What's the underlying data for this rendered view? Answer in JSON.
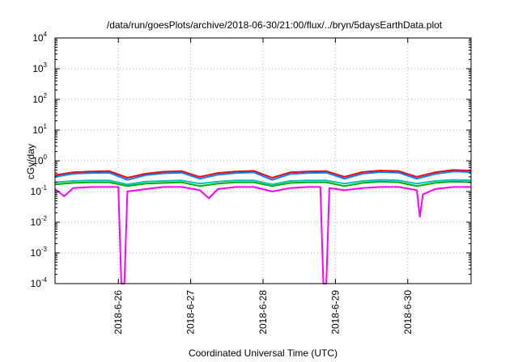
{
  "chart_data": {
    "type": "line",
    "title": "/data/run/goesPlots/archive/2018-06-30/21:00/flux/../bryn/5daysEarthData.plot",
    "xlabel": "Coordinated Universal Time (UTC)",
    "ylabel": "cGy/day",
    "yscale": "log",
    "ylim": [
      0.0001,
      10000
    ],
    "xlim": [
      "2018-06-25T03:00",
      "2018-06-30T21:00"
    ],
    "grid": true,
    "legend": "none",
    "x_ticks": [
      "2018-6-26",
      "2018-6-27",
      "2018-6-28",
      "2018-6-29",
      "2018-6-30"
    ],
    "y_ticks": [
      {
        "value": 0.0001,
        "base": "10",
        "exp": "-4"
      },
      {
        "value": 0.001,
        "base": "10",
        "exp": "-3"
      },
      {
        "value": 0.01,
        "base": "10",
        "exp": "-2"
      },
      {
        "value": 0.1,
        "base": "10",
        "exp": "-1"
      },
      {
        "value": 1,
        "base": "10",
        "exp": "0"
      },
      {
        "value": 10,
        "base": "10",
        "exp": "1"
      },
      {
        "value": 100,
        "base": "10",
        "exp": "2"
      },
      {
        "value": 1000,
        "base": "10",
        "exp": "3"
      },
      {
        "value": 10000,
        "base": "10",
        "exp": "4"
      }
    ],
    "series": [
      {
        "color": "#ff0000",
        "values": [
          [
            "2018-06-25T03:00",
            0.34
          ],
          [
            "2018-06-25T09:00",
            0.42
          ],
          [
            "2018-06-25T15:00",
            0.45
          ],
          [
            "2018-06-25T21:00",
            0.46
          ],
          [
            "2018-06-26T03:00",
            0.28
          ],
          [
            "2018-06-26T09:00",
            0.38
          ],
          [
            "2018-06-26T15:00",
            0.44
          ],
          [
            "2018-06-26T21:00",
            0.46
          ],
          [
            "2018-06-27T03:00",
            0.3
          ],
          [
            "2018-06-27T09:00",
            0.4
          ],
          [
            "2018-06-27T15:00",
            0.45
          ],
          [
            "2018-06-27T21:00",
            0.47
          ],
          [
            "2018-06-28T03:00",
            0.28
          ],
          [
            "2018-06-28T09:00",
            0.42
          ],
          [
            "2018-06-28T15:00",
            0.45
          ],
          [
            "2018-06-28T21:00",
            0.46
          ],
          [
            "2018-06-29T03:00",
            0.3
          ],
          [
            "2018-06-29T09:00",
            0.43
          ],
          [
            "2018-06-29T15:00",
            0.48
          ],
          [
            "2018-06-29T21:00",
            0.46
          ],
          [
            "2018-06-30T03:00",
            0.3
          ],
          [
            "2018-06-30T09:00",
            0.42
          ],
          [
            "2018-06-30T15:00",
            0.5
          ],
          [
            "2018-06-30T21:00",
            0.48
          ]
        ]
      },
      {
        "color": "#0080ff",
        "values": [
          [
            "2018-06-25T03:00",
            0.3
          ],
          [
            "2018-06-25T09:00",
            0.38
          ],
          [
            "2018-06-25T15:00",
            0.4
          ],
          [
            "2018-06-25T21:00",
            0.41
          ],
          [
            "2018-06-26T03:00",
            0.24
          ],
          [
            "2018-06-26T09:00",
            0.34
          ],
          [
            "2018-06-26T15:00",
            0.39
          ],
          [
            "2018-06-26T21:00",
            0.41
          ],
          [
            "2018-06-27T03:00",
            0.26
          ],
          [
            "2018-06-27T09:00",
            0.35
          ],
          [
            "2018-06-27T15:00",
            0.4
          ],
          [
            "2018-06-27T21:00",
            0.42
          ],
          [
            "2018-06-28T03:00",
            0.24
          ],
          [
            "2018-06-28T09:00",
            0.37
          ],
          [
            "2018-06-28T15:00",
            0.4
          ],
          [
            "2018-06-28T21:00",
            0.41
          ],
          [
            "2018-06-29T03:00",
            0.26
          ],
          [
            "2018-06-29T09:00",
            0.38
          ],
          [
            "2018-06-29T15:00",
            0.43
          ],
          [
            "2018-06-29T21:00",
            0.41
          ],
          [
            "2018-06-30T03:00",
            0.26
          ],
          [
            "2018-06-30T09:00",
            0.37
          ],
          [
            "2018-06-30T15:00",
            0.45
          ],
          [
            "2018-06-30T21:00",
            0.43
          ]
        ]
      },
      {
        "color": "#00c0c0",
        "values": [
          [
            "2018-06-25T03:00",
            0.2
          ],
          [
            "2018-06-25T09:00",
            0.22
          ],
          [
            "2018-06-25T15:00",
            0.23
          ],
          [
            "2018-06-25T21:00",
            0.23
          ],
          [
            "2018-06-26T03:00",
            0.17
          ],
          [
            "2018-06-26T09:00",
            0.21
          ],
          [
            "2018-06-26T15:00",
            0.22
          ],
          [
            "2018-06-26T21:00",
            0.23
          ],
          [
            "2018-06-27T03:00",
            0.18
          ],
          [
            "2018-06-27T09:00",
            0.21
          ],
          [
            "2018-06-27T15:00",
            0.23
          ],
          [
            "2018-06-27T21:00",
            0.23
          ],
          [
            "2018-06-28T03:00",
            0.17
          ],
          [
            "2018-06-28T09:00",
            0.22
          ],
          [
            "2018-06-28T15:00",
            0.23
          ],
          [
            "2018-06-28T21:00",
            0.23
          ],
          [
            "2018-06-29T03:00",
            0.18
          ],
          [
            "2018-06-29T09:00",
            0.22
          ],
          [
            "2018-06-29T15:00",
            0.24
          ],
          [
            "2018-06-29T21:00",
            0.23
          ],
          [
            "2018-06-30T03:00",
            0.18
          ],
          [
            "2018-06-30T09:00",
            0.22
          ],
          [
            "2018-06-30T15:00",
            0.24
          ],
          [
            "2018-06-30T21:00",
            0.23
          ]
        ]
      },
      {
        "color": "#00b000",
        "values": [
          [
            "2018-06-25T03:00",
            0.17
          ],
          [
            "2018-06-25T09:00",
            0.19
          ],
          [
            "2018-06-25T15:00",
            0.2
          ],
          [
            "2018-06-25T21:00",
            0.2
          ],
          [
            "2018-06-26T03:00",
            0.15
          ],
          [
            "2018-06-26T09:00",
            0.18
          ],
          [
            "2018-06-26T15:00",
            0.19
          ],
          [
            "2018-06-26T21:00",
            0.2
          ],
          [
            "2018-06-27T03:00",
            0.15
          ],
          [
            "2018-06-27T09:00",
            0.18
          ],
          [
            "2018-06-27T15:00",
            0.2
          ],
          [
            "2018-06-27T21:00",
            0.2
          ],
          [
            "2018-06-28T03:00",
            0.15
          ],
          [
            "2018-06-28T09:00",
            0.19
          ],
          [
            "2018-06-28T15:00",
            0.2
          ],
          [
            "2018-06-28T21:00",
            0.2
          ],
          [
            "2018-06-29T03:00",
            0.15
          ],
          [
            "2018-06-29T09:00",
            0.19
          ],
          [
            "2018-06-29T15:00",
            0.21
          ],
          [
            "2018-06-29T21:00",
            0.2
          ],
          [
            "2018-06-30T03:00",
            0.15
          ],
          [
            "2018-06-30T09:00",
            0.19
          ],
          [
            "2018-06-30T15:00",
            0.21
          ],
          [
            "2018-06-30T21:00",
            0.2
          ]
        ]
      },
      {
        "color": "#ff00ff",
        "values": [
          [
            "2018-06-25T03:00",
            0.12
          ],
          [
            "2018-06-25T06:00",
            0.07
          ],
          [
            "2018-06-25T09:00",
            0.13
          ],
          [
            "2018-06-25T15:00",
            0.14
          ],
          [
            "2018-06-25T21:00",
            0.14
          ],
          [
            "2018-06-26T00:00",
            0.14
          ],
          [
            "2018-06-26T01:00",
            0.0001
          ],
          [
            "2018-06-26T02:00",
            0.0001
          ],
          [
            "2018-06-26T03:00",
            0.1
          ],
          [
            "2018-06-26T09:00",
            0.12
          ],
          [
            "2018-06-26T15:00",
            0.14
          ],
          [
            "2018-06-26T21:00",
            0.14
          ],
          [
            "2018-06-27T03:00",
            0.11
          ],
          [
            "2018-06-27T06:00",
            0.06
          ],
          [
            "2018-06-27T09:00",
            0.12
          ],
          [
            "2018-06-27T15:00",
            0.14
          ],
          [
            "2018-06-27T21:00",
            0.14
          ],
          [
            "2018-06-28T03:00",
            0.1
          ],
          [
            "2018-06-28T09:00",
            0.13
          ],
          [
            "2018-06-28T15:00",
            0.14
          ],
          [
            "2018-06-28T19:00",
            0.14
          ],
          [
            "2018-06-28T20:00",
            0.0001
          ],
          [
            "2018-06-28T21:00",
            0.0001
          ],
          [
            "2018-06-28T22:00",
            0.13
          ],
          [
            "2018-06-29T03:00",
            0.11
          ],
          [
            "2018-06-29T09:00",
            0.13
          ],
          [
            "2018-06-29T15:00",
            0.14
          ],
          [
            "2018-06-29T21:00",
            0.14
          ],
          [
            "2018-06-30T03:00",
            0.11
          ],
          [
            "2018-06-30T04:00",
            0.015
          ],
          [
            "2018-06-30T05:00",
            0.08
          ],
          [
            "2018-06-30T09:00",
            0.12
          ],
          [
            "2018-06-30T15:00",
            0.14
          ],
          [
            "2018-06-30T21:00",
            0.14
          ]
        ]
      }
    ]
  }
}
